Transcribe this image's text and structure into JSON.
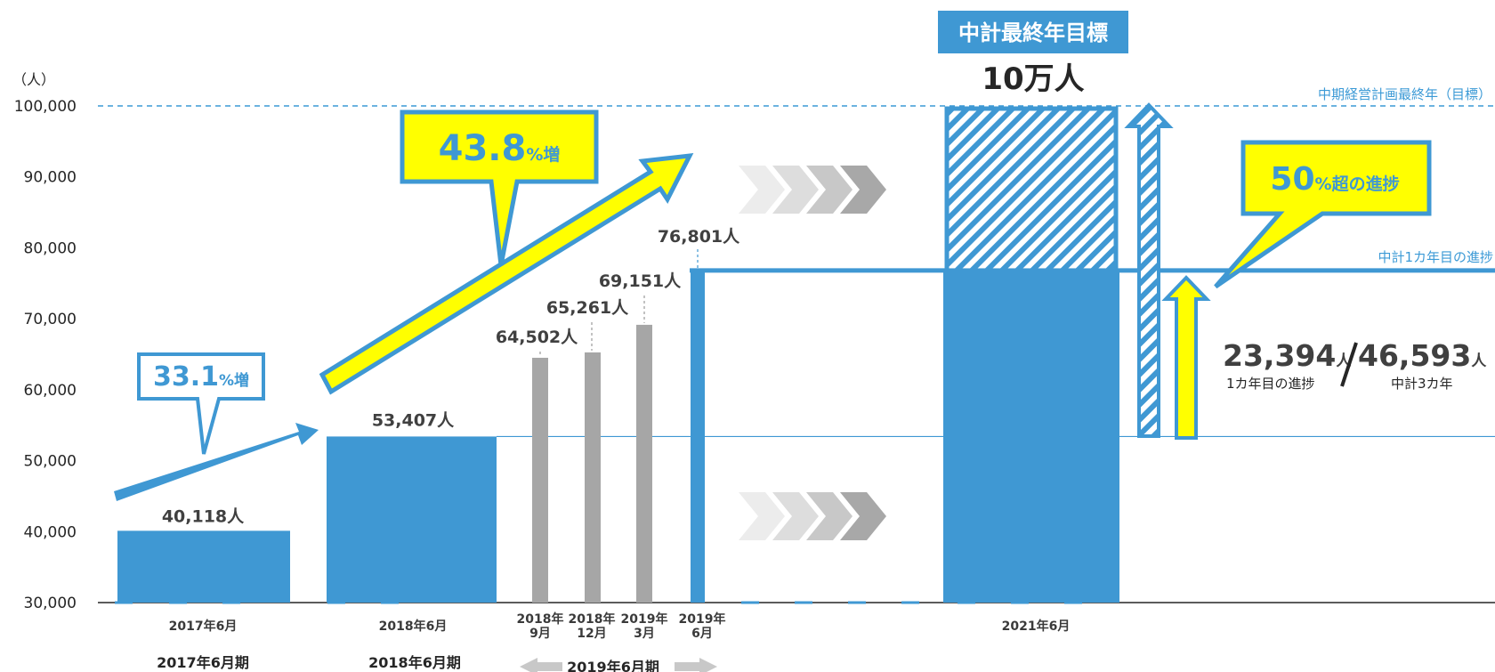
{
  "colors": {
    "bar": "#3f98d3",
    "gray_bar": "#a6a6a6",
    "callout_fill": "#ffff00",
    "callout_border": "#3f98d3",
    "axis_text": "#262626",
    "reference_line": "#3c9ad6"
  },
  "chart_data": {
    "type": "bar",
    "unit_label": "（人）",
    "y_ticks": [
      "30,000",
      "40,000",
      "50,000",
      "60,000",
      "70,000",
      "80,000",
      "90,000",
      "100,000"
    ],
    "ylim": [
      30000,
      100000
    ],
    "grid": false,
    "bars": [
      {
        "category": "2017年6月",
        "value": 40118,
        "label": "40,118人",
        "color": "blue"
      },
      {
        "category": "2018年6月",
        "value": 53407,
        "label": "53,407人",
        "color": "blue"
      },
      {
        "category": "2018年9月",
        "value": 64502,
        "label": "64,502人",
        "color": "gray"
      },
      {
        "category": "2018年12月",
        "value": 65261,
        "label": "65,261人",
        "color": "gray"
      },
      {
        "category": "2019年3月",
        "value": 69151,
        "label": "69,151人",
        "color": "gray"
      },
      {
        "category": "2019年6月",
        "value": 76801,
        "label": "76,801人",
        "color": "blue"
      },
      {
        "category": "2021年6月",
        "value": 76801,
        "target": 100000,
        "label": "10万人",
        "color": "blue"
      }
    ],
    "category_labels": [
      {
        "lines": [
          "2017年6月"
        ]
      },
      {
        "lines": [
          "2018年6月"
        ]
      },
      {
        "lines": [
          "2018年",
          "9月"
        ]
      },
      {
        "lines": [
          "2018年",
          "12月"
        ]
      },
      {
        "lines": [
          "2019年",
          "3月"
        ]
      },
      {
        "lines": [
          "2019年",
          "6月"
        ]
      },
      {
        "lines": [
          "2021年6月"
        ]
      }
    ],
    "period_labels": [
      "2017年6月期",
      "2018年6月期",
      "2019年6月期"
    ],
    "reference_lines": [
      {
        "value": 100000,
        "label": "中期経営計画最終年（目標）",
        "style": "dashed"
      },
      {
        "value": 76801,
        "label": "中計1カ年目の進捗",
        "style": "solid"
      },
      {
        "value": 53407,
        "label": "",
        "style": "solid-thin"
      }
    ],
    "callouts": [
      {
        "value": "33.1",
        "suffix": "%増"
      },
      {
        "value": "43.8",
        "suffix": "%増"
      },
      {
        "value": "50",
        "suffix": "%超の進捗"
      }
    ],
    "target_box": {
      "title": "中計最終年目標",
      "value": "10万人"
    },
    "progress": {
      "achieved": "23,394",
      "achieved_unit": "人",
      "achieved_caption": "1カ年目の進捗",
      "target": "46,593",
      "target_unit": "人",
      "target_caption": "中計3カ年"
    }
  }
}
